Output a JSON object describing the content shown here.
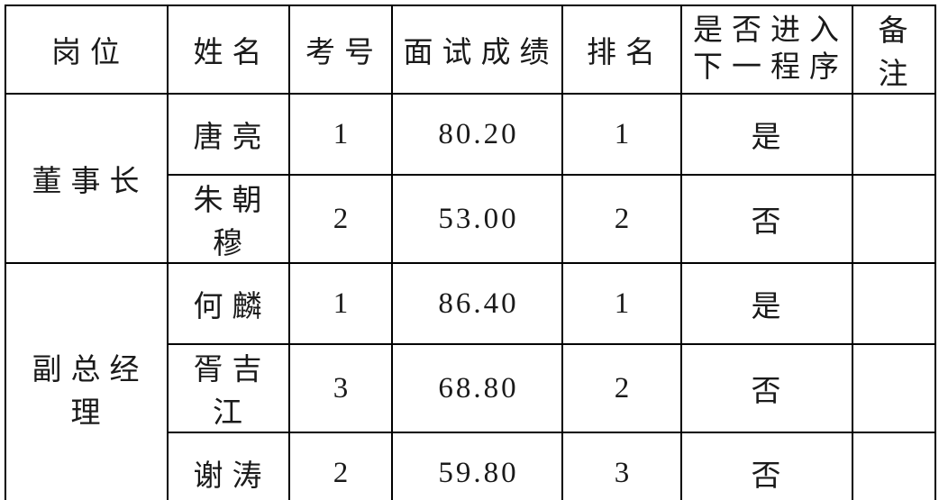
{
  "table": {
    "columns": {
      "position": "岗位",
      "name": "姓名",
      "exam_no": "考号",
      "score": "面试成绩",
      "rank": "排名",
      "next_step_line1": "是否进入",
      "next_step_line2": "下一程序",
      "remark": "备注"
    },
    "groups": [
      {
        "position": "董事长",
        "candidates": [
          {
            "name": "唐亮",
            "exam_no": "1",
            "score": "80.20",
            "rank": "1",
            "next_step": "是",
            "remark": ""
          },
          {
            "name": "朱朝穆",
            "exam_no": "2",
            "score": "53.00",
            "rank": "2",
            "next_step": "否",
            "remark": ""
          }
        ]
      },
      {
        "position": "副总经理",
        "candidates": [
          {
            "name": "何麟",
            "exam_no": "1",
            "score": "86.40",
            "rank": "1",
            "next_step": "是",
            "remark": ""
          },
          {
            "name": "胥吉江",
            "exam_no": "3",
            "score": "68.80",
            "rank": "2",
            "next_step": "否",
            "remark": ""
          },
          {
            "name": "谢涛",
            "exam_no": "2",
            "score": "59.80",
            "rank": "3",
            "next_step": "否",
            "remark": ""
          }
        ]
      }
    ]
  },
  "colors": {
    "border": "#000000",
    "background": "#ffffff",
    "text": "#1a1a1a"
  }
}
